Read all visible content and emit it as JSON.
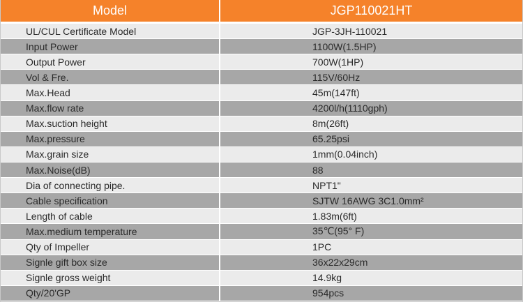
{
  "table": {
    "header": {
      "label": "Model",
      "value": "JGP110021HT"
    },
    "rows": [
      {
        "label": "UL/CUL Certificate Model",
        "value": "JGP-3JH-110021"
      },
      {
        "label": "Input Power",
        "value": "1100W(1.5HP)"
      },
      {
        "label": "Output Power",
        "value": "700W(1HP)"
      },
      {
        "label": "Vol & Fre.",
        "value": "115V/60Hz"
      },
      {
        "label": "Max.Head",
        "value": "45m(147ft)"
      },
      {
        "label": "Max.flow rate",
        "value": "4200l/h(1110gph)"
      },
      {
        "label": "Max.suction height",
        "value": "8m(26ft)"
      },
      {
        "label": "Max.pressure",
        "value": "65.25psi"
      },
      {
        "label": "Max.grain size",
        "value": "1mm(0.04inch)"
      },
      {
        "label": "Max.Noise(dB)",
        "value": "88"
      },
      {
        "label": "Dia of connecting pipe.",
        "value": "NPT1\""
      },
      {
        "label": "Cable specification",
        "value": "SJTW 16AWG 3C1.0mm²"
      },
      {
        "label": "Length of cable",
        "value": "1.83m(6ft)"
      },
      {
        "label": "Max.medium temperature",
        "value": "35℃(95° F)"
      },
      {
        "label": "Qty of Impeller",
        "value": "1PC"
      },
      {
        "label": "Signle gift box size",
        "value": "36x22x29cm"
      },
      {
        "label": "Signle gross weight",
        "value": "14.9kg"
      },
      {
        "label": "Qty/20'GP",
        "value": "954pcs"
      }
    ]
  },
  "colors": {
    "header_bg": "#f5822a",
    "row_light": "#ebebeb",
    "row_dark": "#a7a7a7",
    "text": "#2a2a2a"
  }
}
